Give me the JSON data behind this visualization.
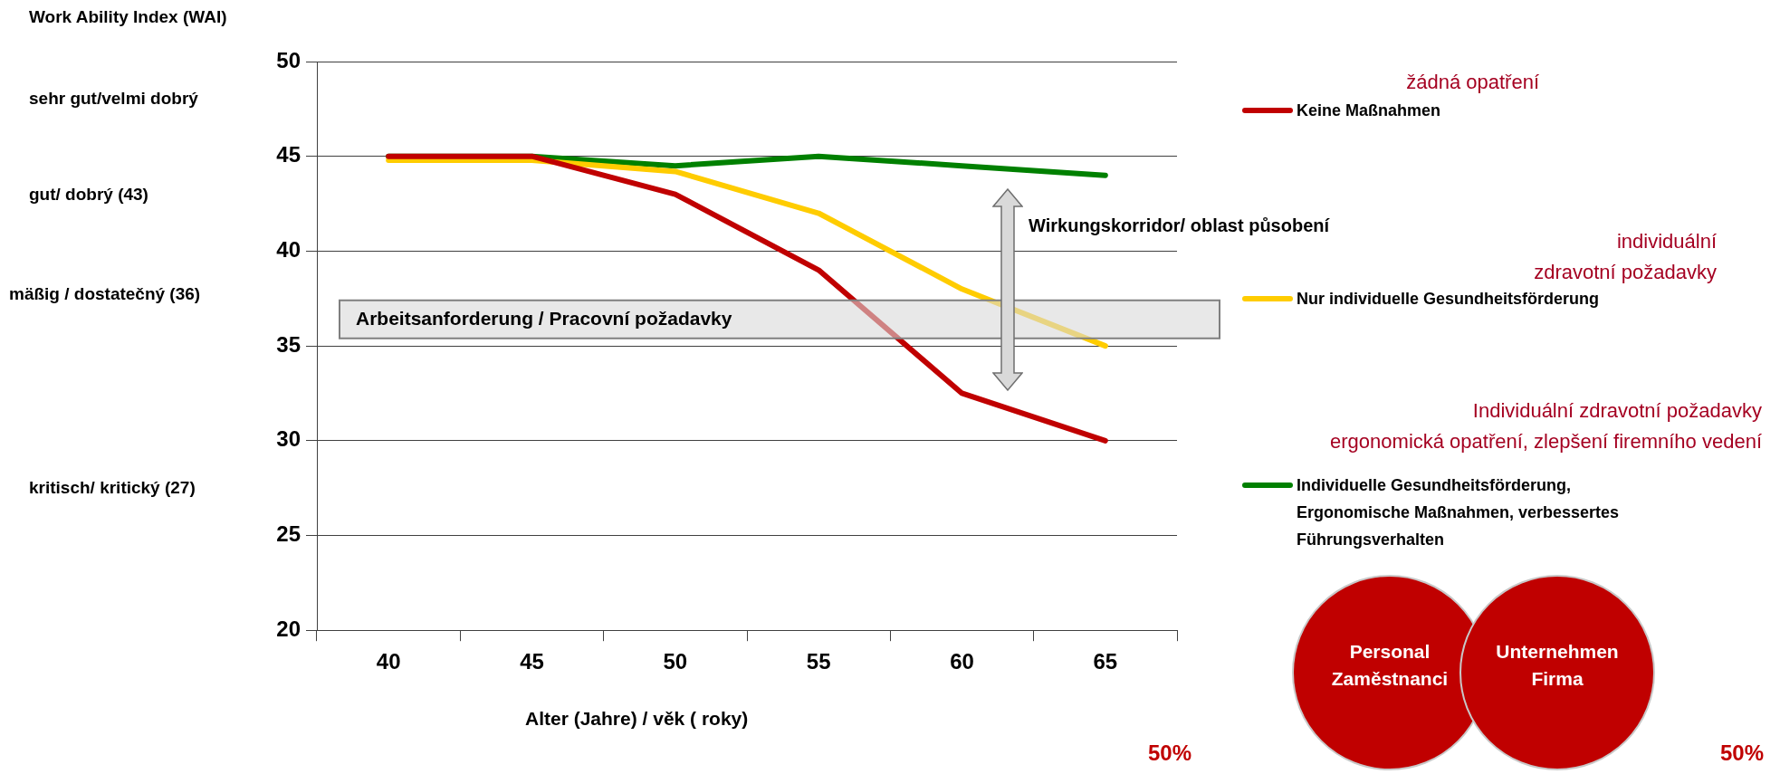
{
  "chart_data": {
    "type": "line",
    "ylabel": "Work Ability Index (WAI)",
    "xlabel": "Alter (Jahre) / věk ( roky)",
    "categories": [
      "40",
      "45",
      "50",
      "55",
      "60",
      "65"
    ],
    "series": [
      {
        "name": "Keine Maßnahmen",
        "color": "#c00000",
        "values": [
          45,
          45,
          43,
          39,
          32.5,
          30
        ]
      },
      {
        "name": "Nur individuelle Gesundheitsförderung",
        "color": "#ffcc00",
        "values": [
          44.8,
          44.8,
          44.2,
          42,
          38,
          35
        ]
      },
      {
        "name": "Individuelle Gesundheitsförderung, Ergonomische Maßnahmen, verbessertes Führungsverhalten",
        "color": "#008000",
        "values": [
          45,
          45,
          44.5,
          45,
          44.5,
          44
        ]
      }
    ],
    "ylim": [
      20,
      50
    ],
    "yticks": [
      20,
      25,
      30,
      35,
      40,
      45,
      50
    ],
    "grid": "y",
    "legend": "right",
    "line_style": "solid",
    "bands": [
      {
        "axis": "y",
        "from": 35.4,
        "to": 37.4,
        "label": "Arbeitsanforderung / Pracovní požadavky",
        "color": "#d9d9d9"
      }
    ],
    "annotations": [
      "sehr gut/velmi dobrý",
      "gut/ dobrý (43)",
      "mäßig / dostatečný (36)",
      "kritisch/ kritický (27)",
      "Wirkungskorridor/ oblast působení",
      "žádná opatření",
      "individuální\nzdravotní  požadavky",
      "Individuální zdravotní  požadavky\nergonomická opatření, zlepšení firemního vedení",
      "Personal\nZaměstnanci",
      "Unternehmen\nFirma",
      "50%",
      "50%"
    ]
  }
}
